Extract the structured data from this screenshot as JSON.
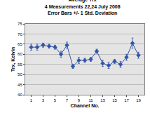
{
  "chart_data": {
    "type": "line",
    "title": "Average Trx",
    "subtitle": [
      "4 Measurements 22,24 July 2008",
      "Error Bars +/- 1 Std. Deviation"
    ],
    "x_label": "Channel No.",
    "y_label": "Trx, Kelvin",
    "x": [
      1,
      2,
      3,
      4,
      5,
      6,
      7,
      8,
      9,
      10,
      11,
      12,
      13,
      14,
      15,
      16,
      17,
      18,
      19
    ],
    "values": [
      63.5,
      63.5,
      64.5,
      64,
      63.5,
      60,
      64.5,
      54,
      57,
      57,
      57.5,
      61.5,
      55.5,
      54.5,
      56.5,
      55,
      58.5,
      65.5,
      59.5
    ],
    "errors": [
      1.5,
      1.5,
      1,
      1,
      1,
      1.5,
      1.5,
      1,
      1.5,
      1,
      1,
      1,
      1.5,
      1.5,
      1,
      1.5,
      1.5,
      2.5,
      1.5
    ],
    "color": "#3355aa",
    "marker": "diamond",
    "xlim": [
      0,
      20
    ],
    "xticks": [
      1,
      3,
      5,
      7,
      9,
      11,
      13,
      15,
      17,
      19
    ],
    "ylim": [
      40,
      75
    ],
    "yticks": [
      40,
      45,
      50,
      55,
      60,
      65,
      70,
      75
    ],
    "grid": true
  }
}
